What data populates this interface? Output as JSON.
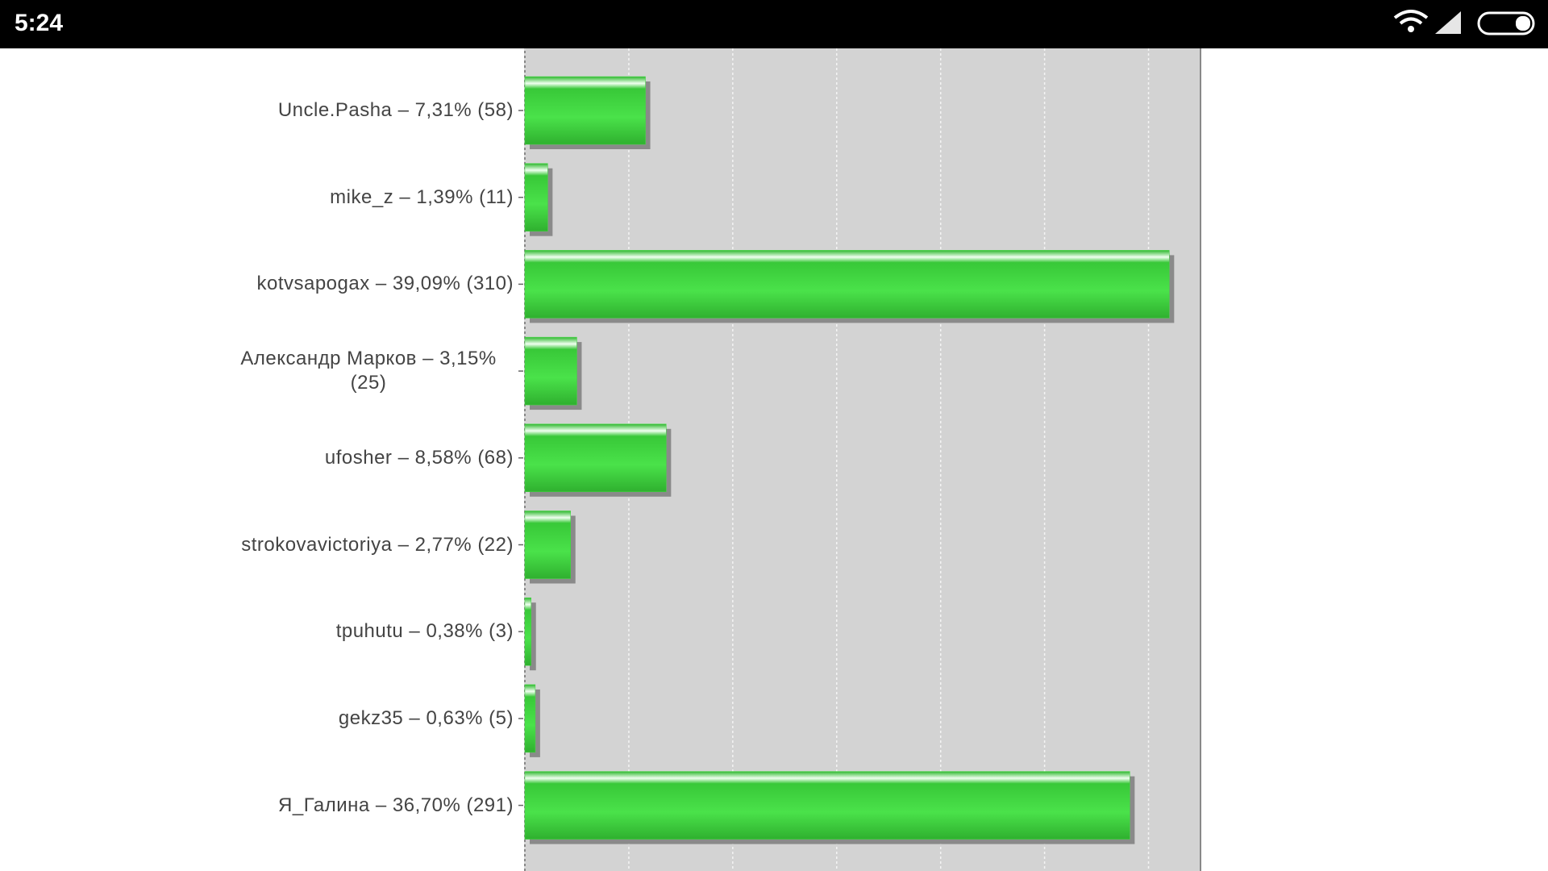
{
  "status_bar": {
    "time": "5:24"
  },
  "chart_data": {
    "type": "barh",
    "categories": [
      "Uncle.Pasha – 7,31% (58)",
      "mike_z – 1,39% (11)",
      "kotvsapogax – 39,09% (310)",
      "Александр Марков – 3,15% (25)",
      "ufosher – 8,58% (68)",
      "strokovavictoriya – 2,77% (22)",
      "tpuhutu – 0,38% (3)",
      "gekz35 – 0,63% (5)",
      "Я_Галина – 36,70% (291)"
    ],
    "values": [
      58,
      11,
      310,
      25,
      68,
      22,
      3,
      5,
      291
    ],
    "color": "#3fdc3f",
    "xlim": [
      0,
      325
    ],
    "xticks": [
      0,
      50,
      100,
      150,
      200,
      250,
      300
    ],
    "grid": true
  }
}
